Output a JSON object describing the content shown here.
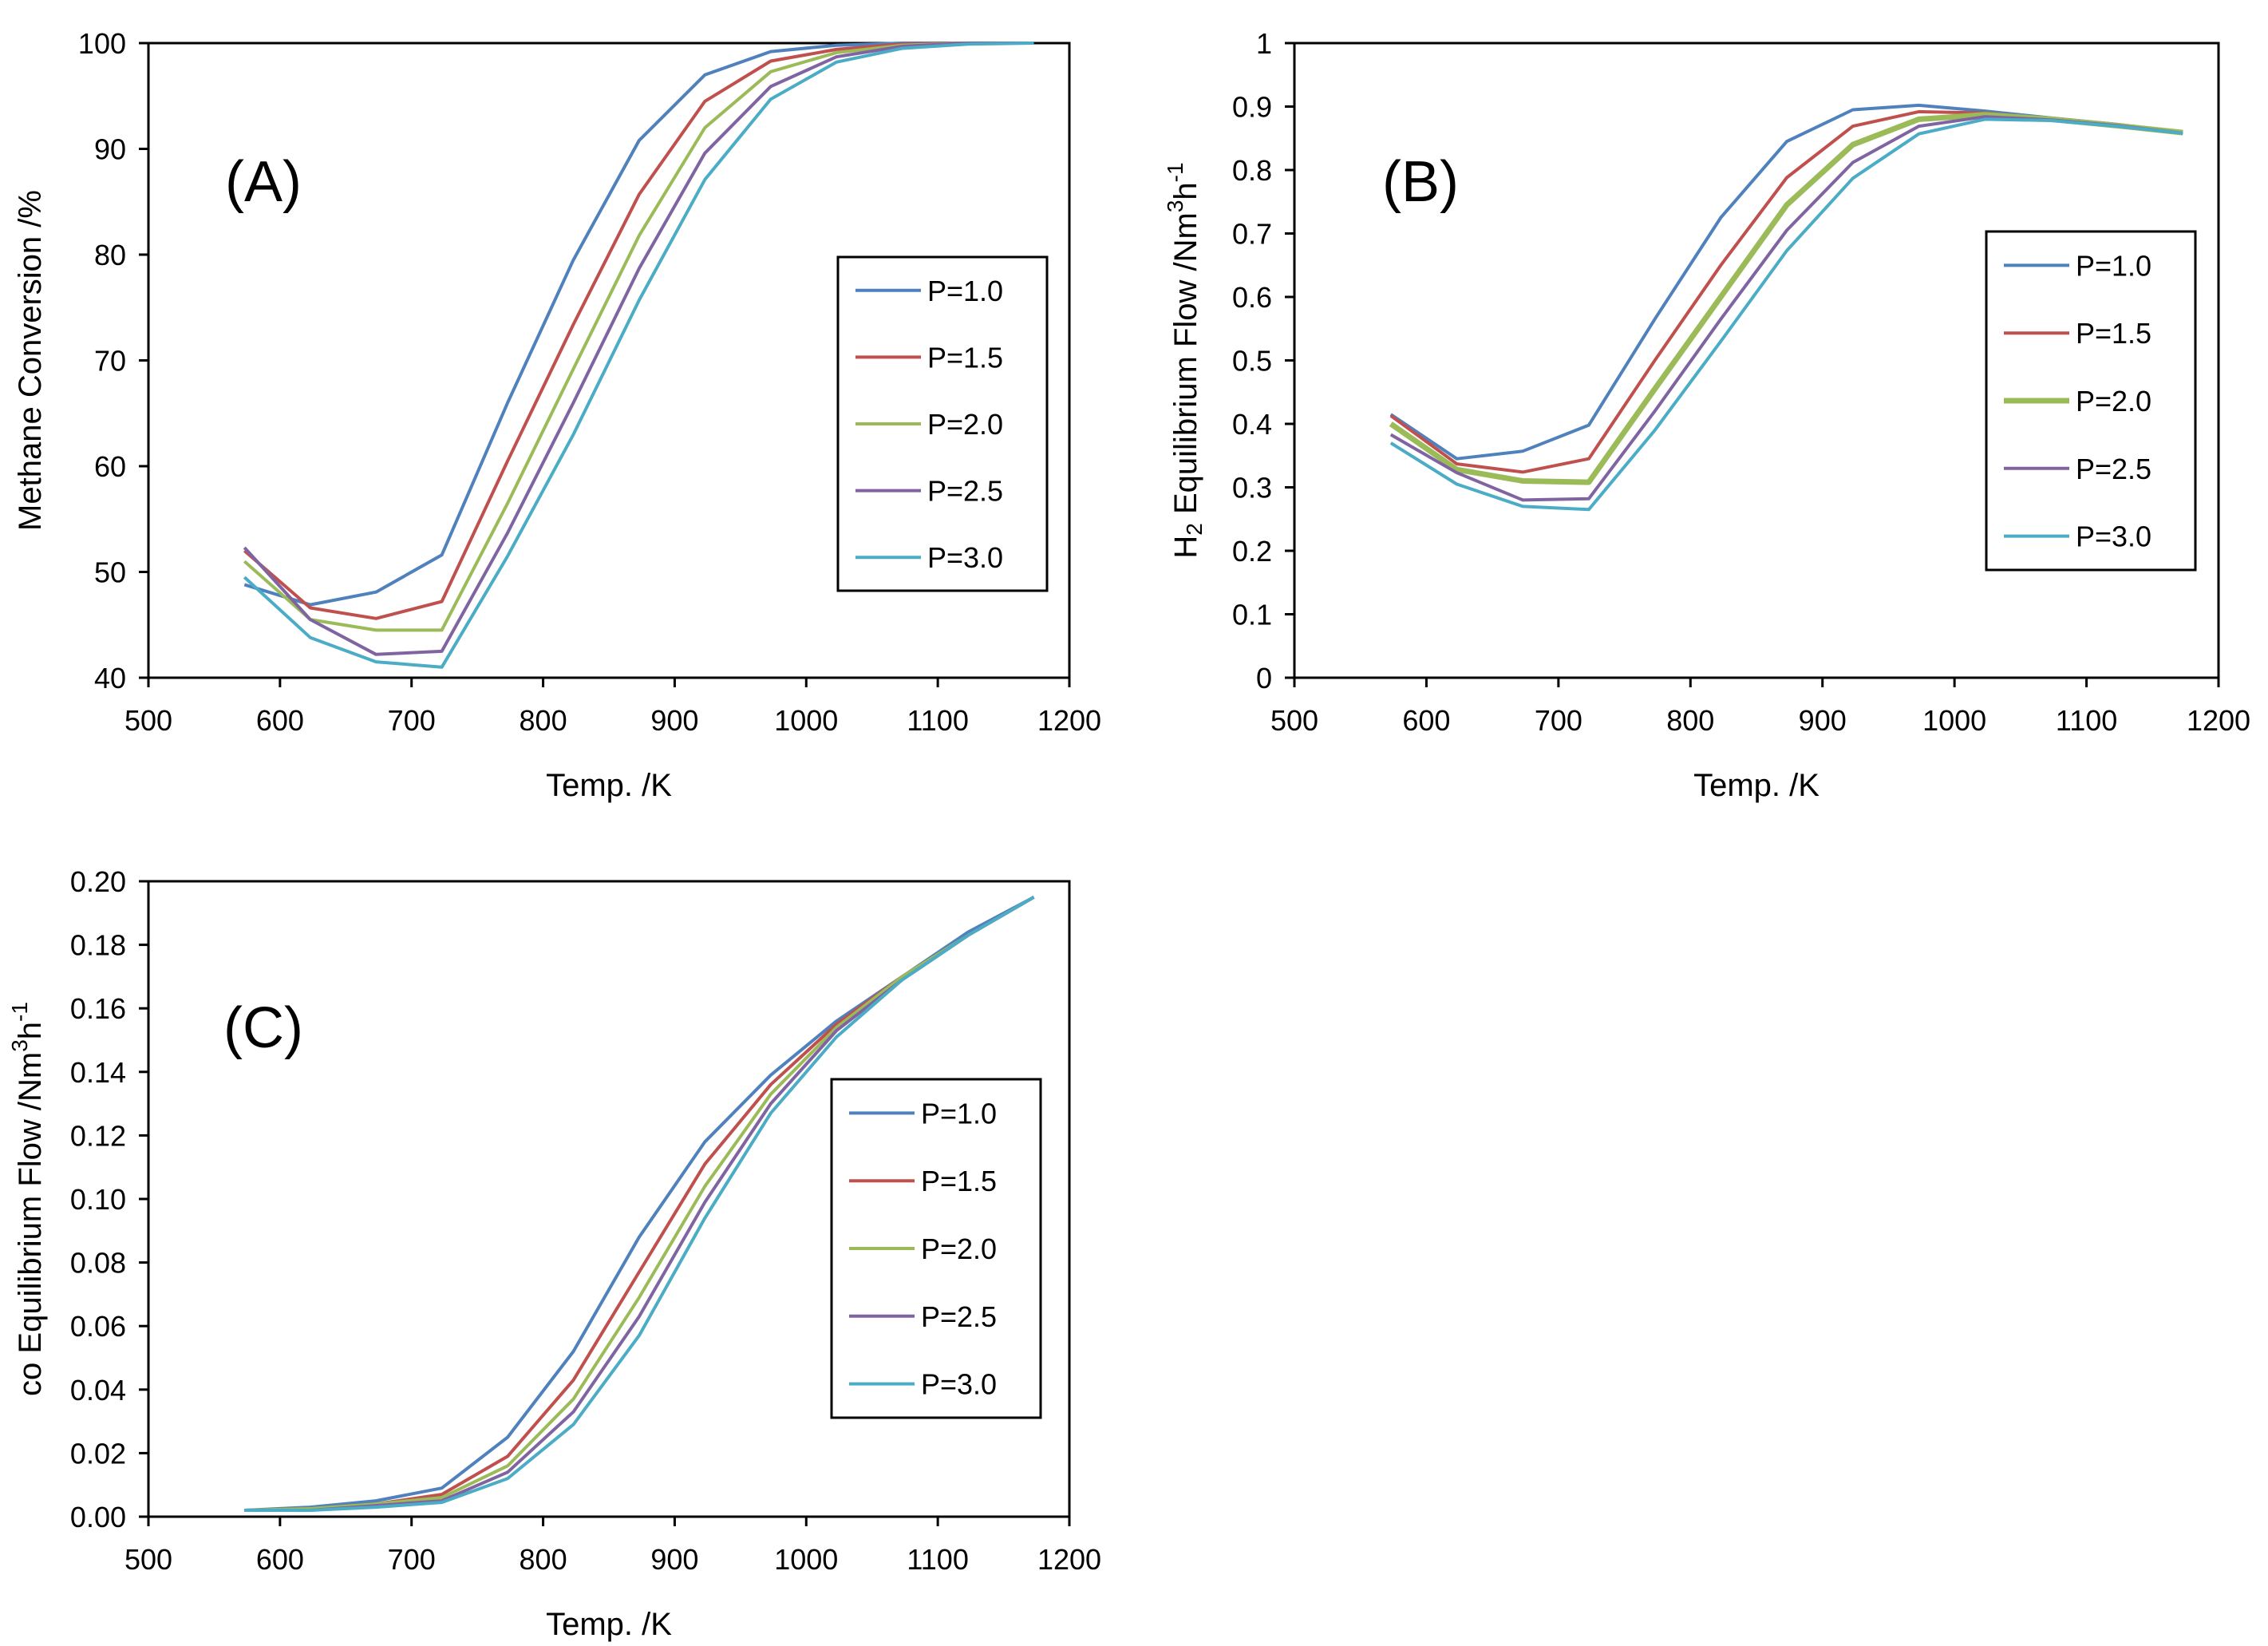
{
  "chart_data": [
    {
      "id": "A",
      "type": "line",
      "panel_label": "(A)",
      "xlabel": "Temp. /K",
      "ylabel": "Methane Conversion /%",
      "xlim": [
        500,
        1200
      ],
      "ylim": [
        40,
        100
      ],
      "x_ticks": [
        500,
        600,
        700,
        800,
        900,
        1000,
        1100,
        1200
      ],
      "y_ticks": [
        40,
        50,
        60,
        70,
        80,
        90,
        100
      ],
      "y_decimals": 0,
      "grid": false,
      "legend_position": "right-middle",
      "x": [
        573,
        623,
        673,
        723,
        773,
        823,
        873,
        923,
        973,
        1023,
        1073,
        1123,
        1173
      ],
      "series": [
        {
          "name": "P=1.0",
          "color": "#4F81BD",
          "values": [
            48.8,
            46.9,
            48.1,
            51.6,
            66.0,
            79.5,
            90.8,
            97.0,
            99.2,
            99.8,
            100,
            100,
            100
          ]
        },
        {
          "name": "P=1.5",
          "color": "#C0504D",
          "values": [
            52.0,
            46.6,
            45.6,
            47.2,
            60.5,
            73.4,
            85.7,
            94.5,
            98.3,
            99.4,
            99.9,
            100,
            100
          ]
        },
        {
          "name": "P=2.0",
          "color": "#9BBB59",
          "values": [
            51.0,
            45.5,
            44.5,
            44.5,
            56.5,
            69.2,
            81.8,
            92.0,
            97.3,
            99.1,
            99.8,
            100,
            100
          ]
        },
        {
          "name": "P=2.5",
          "color": "#8064A2",
          "values": [
            52.3,
            45.5,
            42.2,
            42.5,
            53.7,
            66.0,
            78.7,
            89.6,
            95.9,
            98.7,
            99.7,
            100,
            100
          ]
        },
        {
          "name": "P=3.0",
          "color": "#4BACC6",
          "values": [
            49.5,
            43.8,
            41.5,
            41.0,
            51.5,
            63.0,
            75.7,
            87.1,
            94.7,
            98.2,
            99.5,
            99.9,
            100
          ]
        }
      ]
    },
    {
      "id": "B",
      "type": "line",
      "panel_label": "(B)",
      "xlabel": "Temp. /K",
      "ylabel_parts": [
        "H",
        "2",
        " Equilibrium Flow /Nm",
        "3",
        "h",
        "-1"
      ],
      "xlim": [
        500,
        1200
      ],
      "ylim": [
        0,
        1
      ],
      "x_ticks": [
        500,
        600,
        700,
        800,
        900,
        1000,
        1100,
        1200
      ],
      "y_ticks": [
        0,
        0.1,
        0.2,
        0.3,
        0.4,
        0.5,
        0.6,
        0.7,
        0.8,
        0.9,
        1
      ],
      "y_decimals": -1,
      "grid": false,
      "legend_position": "right-middle",
      "x": [
        573,
        623,
        673,
        723,
        773,
        823,
        873,
        923,
        973,
        1023,
        1073,
        1123,
        1173
      ],
      "series": [
        {
          "name": "P=1.0",
          "color": "#4F81BD",
          "values": [
            0.415,
            0.345,
            0.357,
            0.398,
            0.565,
            0.725,
            0.845,
            0.895,
            0.902,
            0.893,
            0.882,
            0.872,
            0.86
          ]
        },
        {
          "name": "P=1.5",
          "color": "#C0504D",
          "values": [
            0.413,
            0.337,
            0.324,
            0.345,
            0.5,
            0.65,
            0.788,
            0.869,
            0.892,
            0.89,
            0.881,
            0.871,
            0.859
          ]
        },
        {
          "name": "P=2.0",
          "color": "#9BBB59",
          "thick": true,
          "values": [
            0.4,
            0.328,
            0.31,
            0.308,
            0.455,
            0.6,
            0.745,
            0.84,
            0.88,
            0.887,
            0.88,
            0.87,
            0.859
          ]
        },
        {
          "name": "P=2.5",
          "color": "#8064A2",
          "values": [
            0.383,
            0.323,
            0.28,
            0.282,
            0.42,
            0.565,
            0.705,
            0.812,
            0.869,
            0.884,
            0.879,
            0.87,
            0.858
          ]
        },
        {
          "name": "P=3.0",
          "color": "#4BACC6",
          "values": [
            0.37,
            0.305,
            0.27,
            0.265,
            0.39,
            0.53,
            0.673,
            0.787,
            0.857,
            0.88,
            0.878,
            0.869,
            0.858
          ]
        }
      ]
    },
    {
      "id": "C",
      "type": "line",
      "panel_label": "(C)",
      "xlabel": "Temp. /K",
      "ylabel_parts": [
        "co Equilibrium Flow /Nm",
        "3",
        "h",
        "-1"
      ],
      "xlim": [
        500,
        1200
      ],
      "ylim": [
        0,
        0.2
      ],
      "x_ticks": [
        500,
        600,
        700,
        800,
        900,
        1000,
        1100,
        1200
      ],
      "y_ticks": [
        0,
        0.02,
        0.04,
        0.06,
        0.08,
        0.1,
        0.12,
        0.14,
        0.16,
        0.18,
        0.2
      ],
      "y_decimals": 2,
      "grid": false,
      "legend_position": "right-middle",
      "x": [
        573,
        623,
        673,
        723,
        773,
        823,
        873,
        923,
        973,
        1023,
        1073,
        1123,
        1173
      ],
      "series": [
        {
          "name": "P=1.0",
          "color": "#4F81BD",
          "values": [
            0.002,
            0.003,
            0.005,
            0.009,
            0.025,
            0.052,
            0.088,
            0.118,
            0.139,
            0.156,
            0.17,
            0.184,
            0.195
          ]
        },
        {
          "name": "P=1.5",
          "color": "#C0504D",
          "values": [
            0.002,
            0.0025,
            0.004,
            0.007,
            0.019,
            0.043,
            0.077,
            0.111,
            0.136,
            0.155,
            0.17,
            0.183,
            0.195
          ]
        },
        {
          "name": "P=2.0",
          "color": "#9BBB59",
          "values": [
            0.002,
            0.0025,
            0.004,
            0.006,
            0.016,
            0.037,
            0.069,
            0.104,
            0.133,
            0.154,
            0.17,
            0.183,
            0.195
          ]
        },
        {
          "name": "P=2.5",
          "color": "#8064A2",
          "values": [
            0.002,
            0.002,
            0.0035,
            0.005,
            0.014,
            0.033,
            0.063,
            0.099,
            0.13,
            0.153,
            0.169,
            0.183,
            0.195
          ]
        },
        {
          "name": "P=3.0",
          "color": "#4BACC6",
          "values": [
            0.002,
            0.002,
            0.003,
            0.0045,
            0.012,
            0.029,
            0.057,
            0.094,
            0.127,
            0.151,
            0.169,
            0.183,
            0.195
          ]
        }
      ]
    }
  ]
}
